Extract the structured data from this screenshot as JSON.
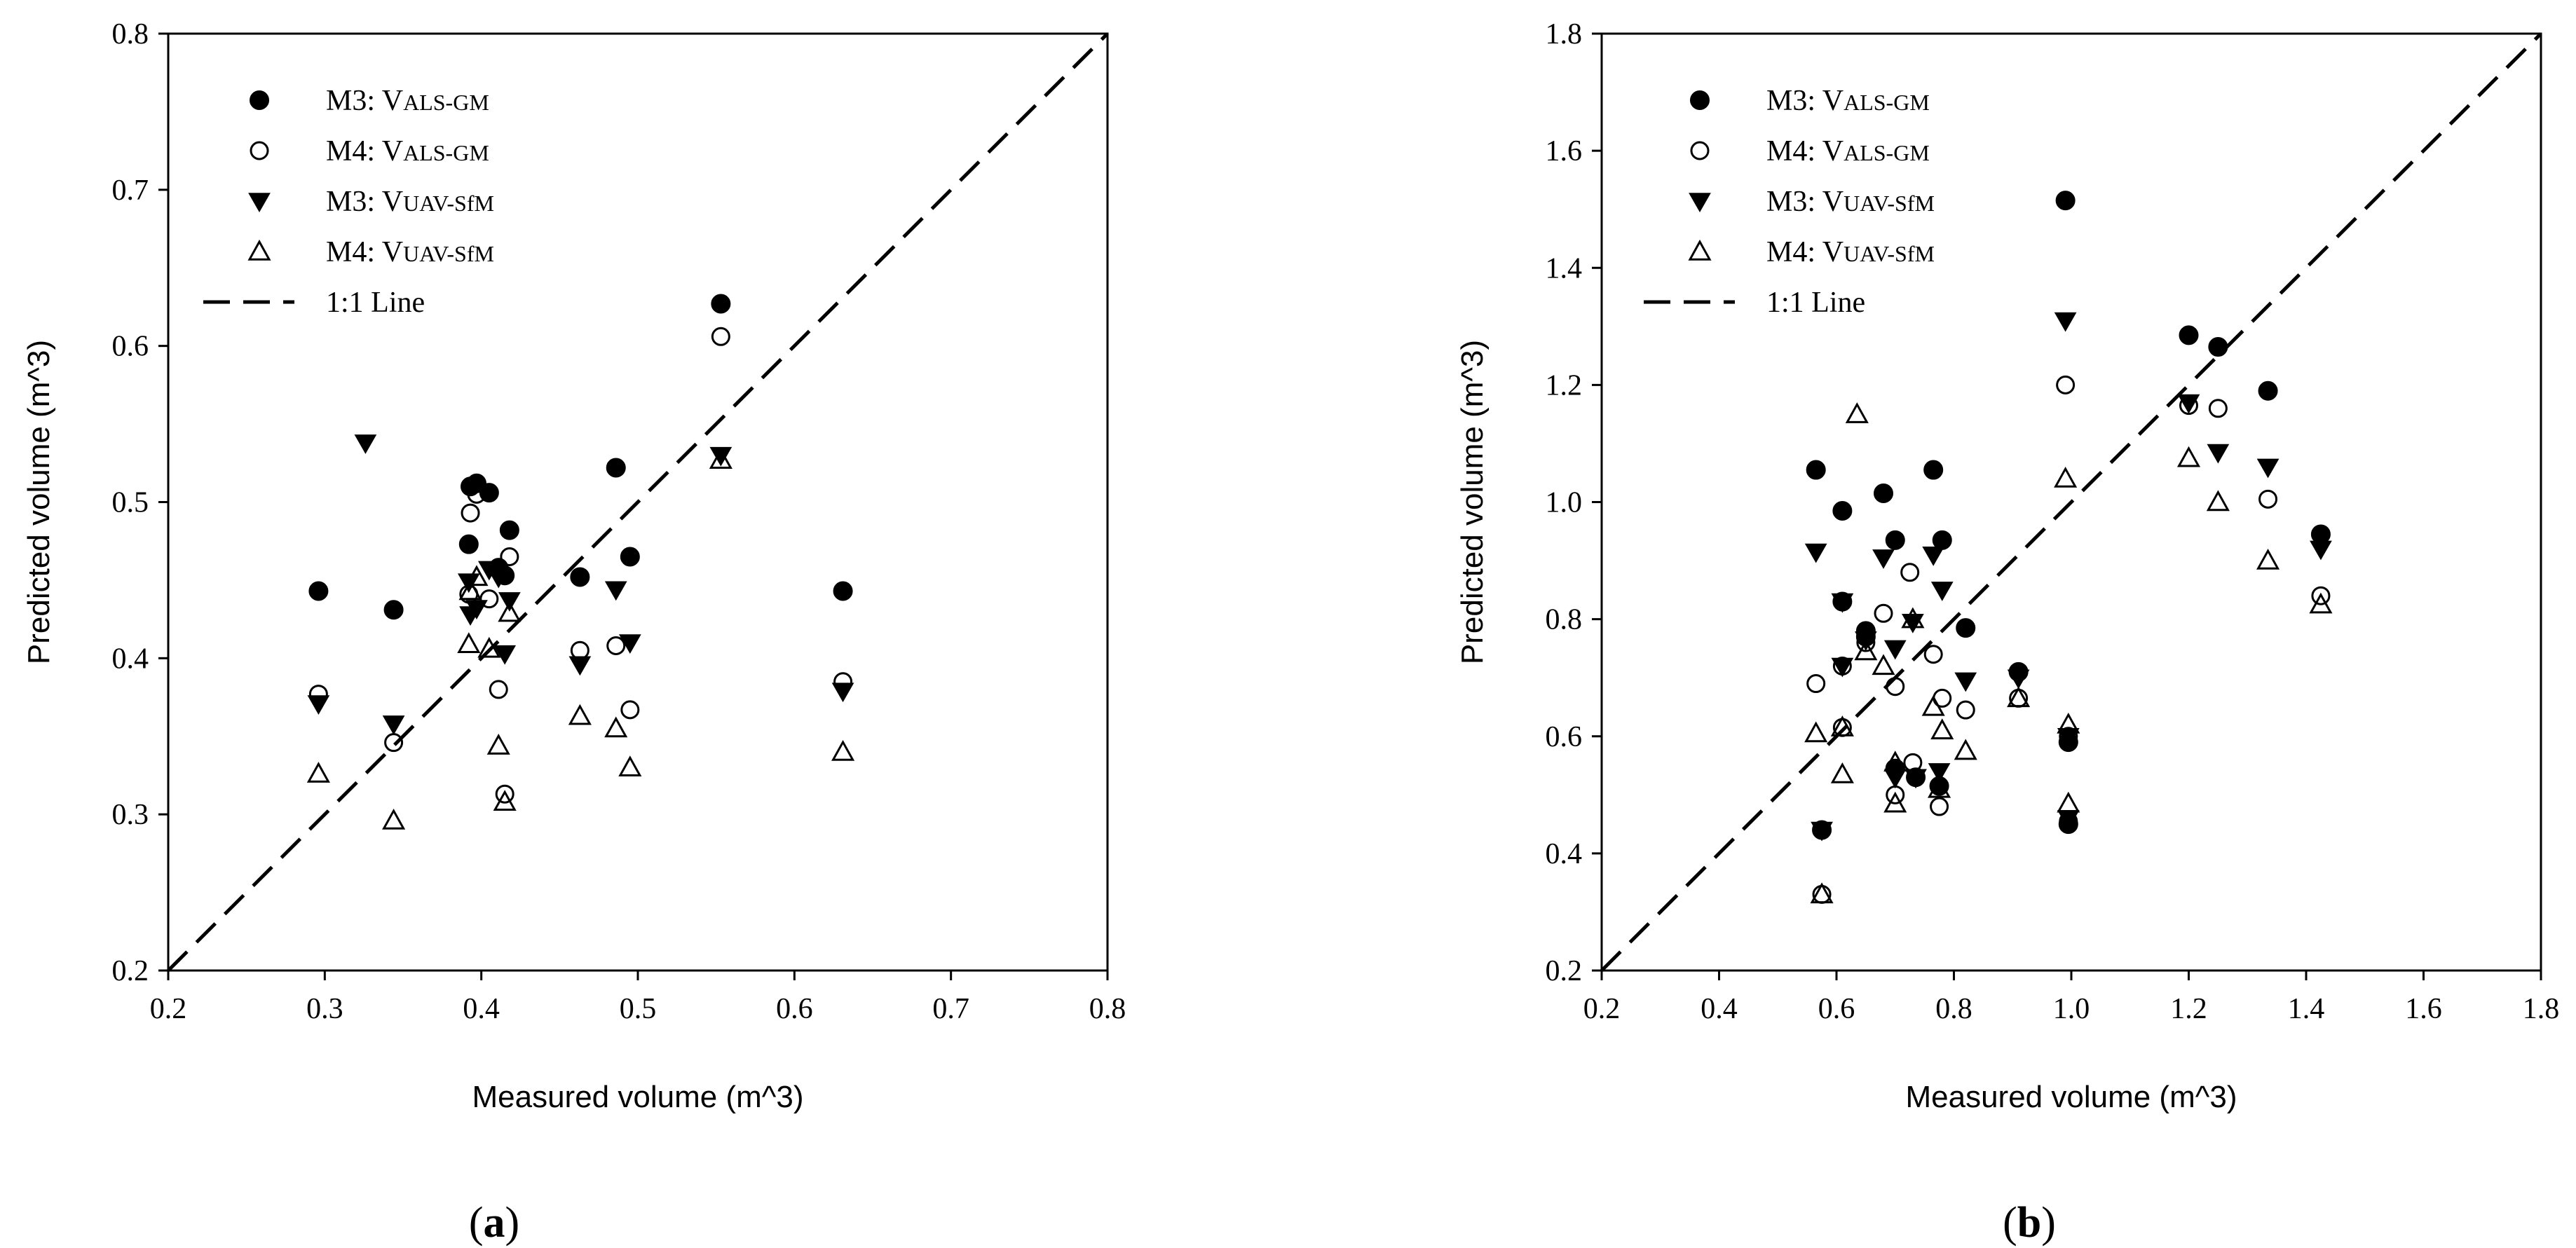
{
  "chart_data": [
    {
      "type": "scatter",
      "panel_label": "a",
      "xlabel": "Measured volume (m^3)",
      "ylabel": "Predicted volume (m^3)",
      "xlim": [
        0.2,
        0.8
      ],
      "ylim": [
        0.2,
        0.8
      ],
      "xticks": [
        "0.2",
        "0.3",
        "0.4",
        "0.5",
        "0.6",
        "0.7",
        "0.8"
      ],
      "yticks": [
        "0.2",
        "0.3",
        "0.4",
        "0.5",
        "0.6",
        "0.7",
        "0.8"
      ],
      "legend_position": "top-left",
      "reference_line": {
        "name": "1:1 Line",
        "style": "dashed"
      },
      "series": [
        {
          "name": "M3: VALS-GM",
          "label_main": "M3: V",
          "label_sub": "ALS-GM",
          "marker": "filled-circle",
          "points": [
            [
              0.296,
              0.443
            ],
            [
              0.344,
              0.431
            ],
            [
              0.392,
              0.473
            ],
            [
              0.393,
              0.51
            ],
            [
              0.397,
              0.512
            ],
            [
              0.405,
              0.506
            ],
            [
              0.411,
              0.458
            ],
            [
              0.415,
              0.453
            ],
            [
              0.418,
              0.482
            ],
            [
              0.463,
              0.452
            ],
            [
              0.486,
              0.522
            ],
            [
              0.495,
              0.465
            ],
            [
              0.553,
              0.627
            ],
            [
              0.631,
              0.443
            ]
          ]
        },
        {
          "name": "M4: VALS-GM",
          "label_main": "M4: V",
          "label_sub": "ALS-GM",
          "marker": "open-circle",
          "points": [
            [
              0.296,
              0.377
            ],
            [
              0.344,
              0.346
            ],
            [
              0.392,
              0.441
            ],
            [
              0.393,
              0.493
            ],
            [
              0.397,
              0.505
            ],
            [
              0.405,
              0.438
            ],
            [
              0.411,
              0.38
            ],
            [
              0.415,
              0.313
            ],
            [
              0.418,
              0.465
            ],
            [
              0.463,
              0.405
            ],
            [
              0.486,
              0.408
            ],
            [
              0.495,
              0.367
            ],
            [
              0.553,
              0.606
            ],
            [
              0.631,
              0.385
            ]
          ]
        },
        {
          "name": "M3: VUAV-SfM",
          "label_main": "M3: V",
          "label_sub": "UAV-SfM",
          "marker": "filled-triangle-down",
          "points": [
            [
              0.296,
              0.371
            ],
            [
              0.326,
              0.538
            ],
            [
              0.344,
              0.358
            ],
            [
              0.392,
              0.449
            ],
            [
              0.393,
              0.428
            ],
            [
              0.397,
              0.432
            ],
            [
              0.405,
              0.457
            ],
            [
              0.411,
              0.452
            ],
            [
              0.415,
              0.403
            ],
            [
              0.418,
              0.437
            ],
            [
              0.463,
              0.396
            ],
            [
              0.486,
              0.444
            ],
            [
              0.495,
              0.41
            ],
            [
              0.553,
              0.53
            ],
            [
              0.631,
              0.379
            ]
          ]
        },
        {
          "name": "M4: VUAV-SfM",
          "label_main": "M4: V",
          "label_sub": "UAV-SfM",
          "marker": "open-triangle-up",
          "points": [
            [
              0.296,
              0.326
            ],
            [
              0.344,
              0.296
            ],
            [
              0.392,
              0.409
            ],
            [
              0.393,
              0.443
            ],
            [
              0.397,
              0.452
            ],
            [
              0.405,
              0.406
            ],
            [
              0.411,
              0.344
            ],
            [
              0.415,
              0.308
            ],
            [
              0.418,
              0.429
            ],
            [
              0.463,
              0.363
            ],
            [
              0.486,
              0.355
            ],
            [
              0.495,
              0.33
            ],
            [
              0.553,
              0.527
            ],
            [
              0.631,
              0.34
            ]
          ]
        }
      ]
    },
    {
      "type": "scatter",
      "panel_label": "b",
      "xlabel": "Measured volume (m^3)",
      "ylabel": "Predicted volume (m^3)",
      "xlim": [
        0.2,
        1.8
      ],
      "ylim": [
        0.2,
        1.8
      ],
      "xticks": [
        "0.2",
        "0.4",
        "0.6",
        "0.8",
        "1.0",
        "1.2",
        "1.4",
        "1.6",
        "1.8"
      ],
      "yticks": [
        "0.2",
        "0.4",
        "0.6",
        "0.8",
        "1.0",
        "1.2",
        "1.4",
        "1.6",
        "1.8"
      ],
      "legend_position": "top-left",
      "reference_line": {
        "name": "1:1 Line",
        "style": "dashed"
      },
      "series": [
        {
          "name": "M3: VALS-GM",
          "label_main": "M3: V",
          "label_sub": "ALS-GM",
          "marker": "filled-circle",
          "points": [
            [
              0.565,
              1.055
            ],
            [
              0.575,
              0.44
            ],
            [
              0.61,
              0.985
            ],
            [
              0.61,
              0.83
            ],
            [
              0.65,
              0.78
            ],
            [
              0.65,
              0.77
            ],
            [
              0.68,
              1.015
            ],
            [
              0.7,
              0.935
            ],
            [
              0.7,
              0.545
            ],
            [
              0.735,
              0.53
            ],
            [
              0.765,
              1.055
            ],
            [
              0.775,
              0.515
            ],
            [
              0.78,
              0.935
            ],
            [
              0.82,
              0.785
            ],
            [
              0.91,
              0.71
            ],
            [
              0.99,
              1.515
            ],
            [
              0.995,
              0.59
            ],
            [
              0.995,
              0.45
            ],
            [
              1.2,
              1.285
            ],
            [
              1.25,
              1.265
            ],
            [
              1.335,
              1.19
            ],
            [
              1.425,
              0.945
            ]
          ]
        },
        {
          "name": "M4: VALS-GM",
          "label_main": "M4: V",
          "label_sub": "ALS-GM",
          "marker": "open-circle",
          "points": [
            [
              0.565,
              0.69
            ],
            [
              0.575,
              0.33
            ],
            [
              0.61,
              0.615
            ],
            [
              0.61,
              0.72
            ],
            [
              0.65,
              0.76
            ],
            [
              0.68,
              0.81
            ],
            [
              0.7,
              0.685
            ],
            [
              0.7,
              0.5
            ],
            [
              0.725,
              0.88
            ],
            [
              0.73,
              0.555
            ],
            [
              0.765,
              0.74
            ],
            [
              0.775,
              0.48
            ],
            [
              0.78,
              0.665
            ],
            [
              0.82,
              0.645
            ],
            [
              0.91,
              0.665
            ],
            [
              0.99,
              1.2
            ],
            [
              0.995,
              0.6
            ],
            [
              0.995,
              0.455
            ],
            [
              1.2,
              1.165
            ],
            [
              1.25,
              1.16
            ],
            [
              1.335,
              1.005
            ],
            [
              1.425,
              0.84
            ]
          ]
        },
        {
          "name": "M3: VUAV-SfM",
          "label_main": "M3: V",
          "label_sub": "UAV-SfM",
          "marker": "filled-triangle-down",
          "points": [
            [
              0.565,
              0.915
            ],
            [
              0.575,
              0.44
            ],
            [
              0.61,
              0.83
            ],
            [
              0.61,
              0.72
            ],
            [
              0.65,
              0.765
            ],
            [
              0.68,
              0.905
            ],
            [
              0.7,
              0.75
            ],
            [
              0.7,
              0.53
            ],
            [
              0.73,
              0.795
            ],
            [
              0.735,
              0.53
            ],
            [
              0.765,
              0.91
            ],
            [
              0.775,
              0.54
            ],
            [
              0.78,
              0.85
            ],
            [
              0.82,
              0.695
            ],
            [
              0.91,
              0.7
            ],
            [
              0.99,
              1.31
            ],
            [
              0.995,
              0.6
            ],
            [
              0.995,
              0.46
            ],
            [
              1.2,
              1.17
            ],
            [
              1.25,
              1.085
            ],
            [
              1.335,
              1.06
            ],
            [
              1.425,
              0.92
            ]
          ]
        },
        {
          "name": "M4: VUAV-SfM",
          "label_main": "M4: V",
          "label_sub": "UAV-SfM",
          "marker": "open-triangle-up",
          "points": [
            [
              0.565,
              0.605
            ],
            [
              0.575,
              0.33
            ],
            [
              0.61,
              0.535
            ],
            [
              0.61,
              0.615
            ],
            [
              0.635,
              1.15
            ],
            [
              0.65,
              0.745
            ],
            [
              0.68,
              0.72
            ],
            [
              0.7,
              0.555
            ],
            [
              0.7,
              0.485
            ],
            [
              0.73,
              0.8
            ],
            [
              0.765,
              0.65
            ],
            [
              0.775,
              0.51
            ],
            [
              0.78,
              0.61
            ],
            [
              0.82,
              0.575
            ],
            [
              0.91,
              0.665
            ],
            [
              0.99,
              1.04
            ],
            [
              0.995,
              0.62
            ],
            [
              0.995,
              0.485
            ],
            [
              1.2,
              1.075
            ],
            [
              1.25,
              1.0
            ],
            [
              1.335,
              0.9
            ],
            [
              1.425,
              0.825
            ]
          ]
        }
      ]
    }
  ]
}
